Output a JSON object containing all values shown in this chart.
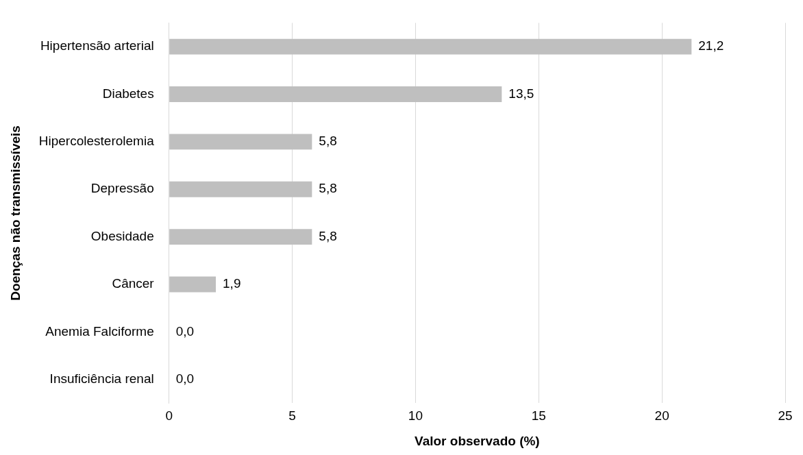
{
  "chart_data": {
    "type": "bar",
    "orientation": "horizontal",
    "xlabel": "Valor observado (%)",
    "ylabel": "Doenças não transmissíveis",
    "categories": [
      "Hipertensão arterial",
      "Diabetes",
      "Hipercolesterolemia",
      "Depressão",
      "Obesidade",
      "Câncer",
      "Anemia Falciforme",
      "Insuficiência renal"
    ],
    "values": [
      21.2,
      13.5,
      5.8,
      5.8,
      5.8,
      1.9,
      0,
      0
    ],
    "value_labels": [
      "21,2",
      "13,5",
      "5,8",
      "5,8",
      "5,8",
      "1,9",
      "0,0",
      "0,0"
    ],
    "color": "#bfbfbf",
    "xlim": [
      0,
      25
    ],
    "xticks": [
      0,
      5,
      10,
      15,
      20,
      25
    ],
    "grid": "x",
    "legend": false
  }
}
